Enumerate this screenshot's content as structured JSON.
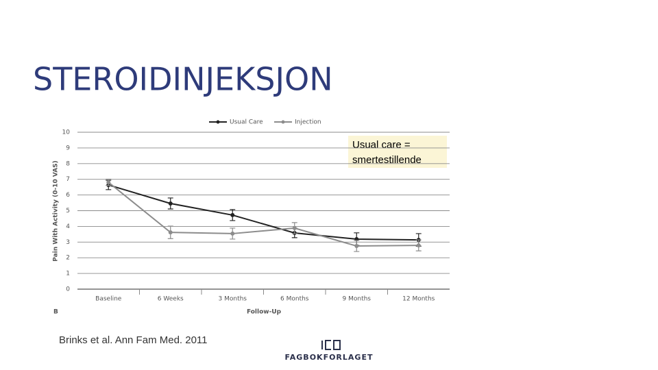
{
  "slide_title": "STEROIDINJEKSJON",
  "note": [
    "Usual care =",
    "smertestillende"
  ],
  "citation": "Brinks et al. Ann Fam Med. 2011",
  "logo": "FAGBOKFORLAGET",
  "chart_data": {
    "type": "line",
    "panel_label": "B",
    "x_label": "Follow-Up",
    "y_label": "Pain With Activity (0-10 VAS)",
    "categories": [
      "Baseline",
      "6 Weeks",
      "3 Months",
      "6 Months",
      "9 Months",
      "12 Months"
    ],
    "series": [
      {
        "name": "Usual Care",
        "color": "#222222",
        "values": [
          6.64,
          5.46,
          4.72,
          3.58,
          3.19,
          3.14
        ],
        "errors": [
          0.3,
          0.35,
          0.35,
          0.3,
          0.4,
          0.4
        ]
      },
      {
        "name": "Injection",
        "color": "#8c8c8c",
        "values": [
          6.81,
          3.62,
          3.54,
          3.89,
          2.75,
          2.79
        ],
        "errors": [
          0.2,
          0.4,
          0.35,
          0.35,
          0.35,
          0.35
        ]
      }
    ],
    "ylim": [
      0,
      10
    ],
    "yticks": [
      0,
      1,
      2,
      3,
      4,
      5,
      6,
      7,
      8,
      9,
      10
    ],
    "grid": true
  }
}
